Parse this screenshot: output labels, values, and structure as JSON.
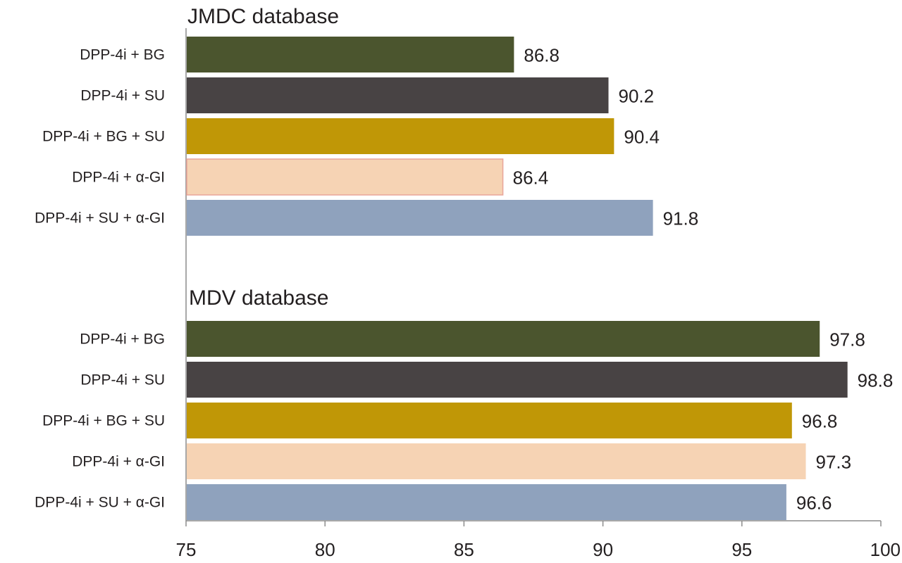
{
  "chart_data": [
    {
      "type": "bar",
      "orientation": "horizontal",
      "title": "JMDC database",
      "categories": [
        "DPP-4i + BG",
        "DPP-4i + SU",
        "DPP-4i + BG + SU",
        "DPP-4i + α-GI",
        "DPP-4i + SU + α-GI"
      ],
      "values": [
        86.8,
        90.2,
        90.4,
        86.4,
        91.8
      ],
      "value_labels": [
        "86.8",
        "90.2",
        "90.4",
        "86.4",
        "91.8"
      ],
      "colors": [
        "#4b552e",
        "#484344",
        "#c09706",
        "#f6d3b4",
        "#8fa2bd"
      ],
      "xlim": [
        75,
        100
      ],
      "grid": false
    },
    {
      "type": "bar",
      "orientation": "horizontal",
      "title": "MDV database",
      "categories": [
        "DPP-4i + BG",
        "DPP-4i + SU",
        "DPP-4i + BG + SU",
        "DPP-4i + α-GI",
        "DPP-4i + SU + α-GI"
      ],
      "values": [
        97.8,
        98.8,
        96.8,
        97.3,
        96.6
      ],
      "value_labels": [
        "97.8",
        "98.8",
        "96.8",
        "97.3",
        "96.6"
      ],
      "colors": [
        "#4b552e",
        "#484344",
        "#c09706",
        "#f6d3b4",
        "#8fa2bd"
      ],
      "xlim": [
        75,
        100
      ],
      "grid": false
    }
  ],
  "x_axis": {
    "ticks": [
      75,
      80,
      85,
      90,
      95,
      100
    ],
    "tick_labels": [
      "75",
      "80",
      "85",
      "90",
      "95",
      "100"
    ]
  },
  "style": {
    "alpha_gi_outline": "#e8a59a"
  }
}
